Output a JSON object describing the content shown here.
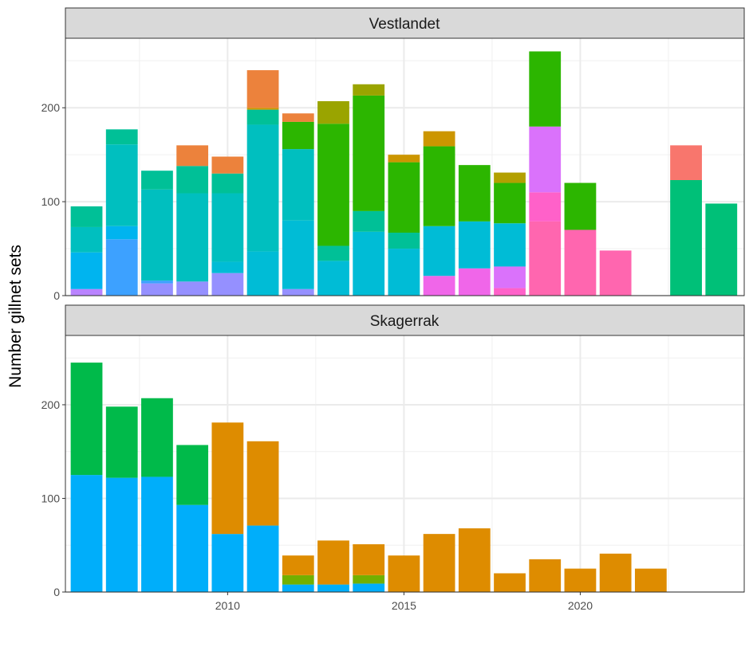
{
  "chart_data": {
    "type": "bar",
    "stacked": true,
    "ylabel": "Number gillnet sets",
    "xlabel": "",
    "x_ticks": [
      2010,
      2015,
      2020
    ],
    "y_ticks": [
      0,
      100,
      200
    ],
    "xlim": [
      2005.4,
      2024.65
    ],
    "ylim": [
      0,
      274
    ],
    "grid": true,
    "legend": "none",
    "facets": [
      {
        "title": "Vestlandet",
        "bars": [
          {
            "x": 2006,
            "segments": [
              {
                "value": 7,
                "color": "#B983FF"
              },
              {
                "value": 39,
                "color": "#00B4EF"
              },
              {
                "value": 27,
                "color": "#00BFBF"
              },
              {
                "value": 22,
                "color": "#00C097"
              }
            ]
          },
          {
            "x": 2007,
            "segments": [
              {
                "value": 60,
                "color": "#3DA1FF"
              },
              {
                "value": 14,
                "color": "#00B4EF"
              },
              {
                "value": 87,
                "color": "#00BFBF"
              },
              {
                "value": 16,
                "color": "#00C097"
              }
            ]
          },
          {
            "x": 2008,
            "segments": [
              {
                "value": 13,
                "color": "#9590FF"
              },
              {
                "value": 3,
                "color": "#3DA1FF"
              },
              {
                "value": 97,
                "color": "#00BFBF"
              },
              {
                "value": 20,
                "color": "#00C097"
              }
            ]
          },
          {
            "x": 2009,
            "segments": [
              {
                "value": 15,
                "color": "#9590FF"
              },
              {
                "value": 94,
                "color": "#00BFBF"
              },
              {
                "value": 29,
                "color": "#00C097"
              },
              {
                "value": 22,
                "color": "#EC823C"
              }
            ]
          },
          {
            "x": 2010,
            "segments": [
              {
                "value": 24,
                "color": "#9590FF"
              },
              {
                "value": 12,
                "color": "#00BCD6"
              },
              {
                "value": 73,
                "color": "#00BFBF"
              },
              {
                "value": 21,
                "color": "#00C097"
              },
              {
                "value": 18,
                "color": "#EC823C"
              }
            ]
          },
          {
            "x": 2011,
            "segments": [
              {
                "value": 47,
                "color": "#00BCD6"
              },
              {
                "value": 135,
                "color": "#00BFBF"
              },
              {
                "value": 16,
                "color": "#00C097"
              },
              {
                "value": 2,
                "color": "#CC9600"
              },
              {
                "value": 40,
                "color": "#EC823C"
              }
            ]
          },
          {
            "x": 2012,
            "segments": [
              {
                "value": 7,
                "color": "#9590FF"
              },
              {
                "value": 73,
                "color": "#00BCD6"
              },
              {
                "value": 76,
                "color": "#00BFBF"
              },
              {
                "value": 29,
                "color": "#2CB600"
              },
              {
                "value": 9,
                "color": "#EC823C"
              }
            ]
          },
          {
            "x": 2013,
            "segments": [
              {
                "value": 37,
                "color": "#00BCD6"
              },
              {
                "value": 16,
                "color": "#00C097"
              },
              {
                "value": 130,
                "color": "#2CB600"
              },
              {
                "value": 24,
                "color": "#9AA400"
              }
            ]
          },
          {
            "x": 2014,
            "segments": [
              {
                "value": 68,
                "color": "#00BCD6"
              },
              {
                "value": 22,
                "color": "#00C097"
              },
              {
                "value": 123,
                "color": "#2CB600"
              },
              {
                "value": 12,
                "color": "#9AA400"
              }
            ]
          },
          {
            "x": 2015,
            "segments": [
              {
                "value": 50,
                "color": "#00BCD6"
              },
              {
                "value": 17,
                "color": "#00C097"
              },
              {
                "value": 75,
                "color": "#2CB600"
              },
              {
                "value": 8,
                "color": "#CC9600"
              }
            ]
          },
          {
            "x": 2016,
            "segments": [
              {
                "value": 21,
                "color": "#F066E9"
              },
              {
                "value": 53,
                "color": "#00BCD6"
              },
              {
                "value": 85,
                "color": "#2CB600"
              },
              {
                "value": 16,
                "color": "#CC9600"
              }
            ]
          },
          {
            "x": 2017,
            "segments": [
              {
                "value": 29,
                "color": "#F066E9"
              },
              {
                "value": 50,
                "color": "#00BCD6"
              },
              {
                "value": 60,
                "color": "#2CB600"
              }
            ]
          },
          {
            "x": 2018,
            "segments": [
              {
                "value": 8,
                "color": "#FF61C9"
              },
              {
                "value": 23,
                "color": "#DA72FB"
              },
              {
                "value": 46,
                "color": "#00BCD6"
              },
              {
                "value": 43,
                "color": "#2CB600"
              },
              {
                "value": 11,
                "color": "#B3A000"
              }
            ]
          },
          {
            "x": 2019,
            "segments": [
              {
                "value": 79,
                "color": "#FF66AF"
              },
              {
                "value": 31,
                "color": "#FF61C9"
              },
              {
                "value": 70,
                "color": "#DA72FB"
              },
              {
                "value": 80,
                "color": "#2CB600"
              }
            ]
          },
          {
            "x": 2020,
            "segments": [
              {
                "value": 70,
                "color": "#FF66AF"
              },
              {
                "value": 50,
                "color": "#2CB600"
              }
            ]
          },
          {
            "x": 2021,
            "segments": [
              {
                "value": 48,
                "color": "#FF66AF"
              }
            ]
          },
          {
            "x": 2023,
            "segments": [
              {
                "value": 123,
                "color": "#00C078"
              },
              {
                "value": 37,
                "color": "#F8766D"
              }
            ]
          },
          {
            "x": 2024,
            "segments": [
              {
                "value": 98,
                "color": "#00C078"
              }
            ]
          }
        ]
      },
      {
        "title": "Skagerrak",
        "bars": [
          {
            "x": 2006,
            "segments": [
              {
                "value": 125,
                "color": "#00AEFA"
              },
              {
                "value": 120,
                "color": "#00BA4A"
              }
            ]
          },
          {
            "x": 2007,
            "segments": [
              {
                "value": 122,
                "color": "#00AEFA"
              },
              {
                "value": 76,
                "color": "#00BA4A"
              }
            ]
          },
          {
            "x": 2008,
            "segments": [
              {
                "value": 123,
                "color": "#00AEFA"
              },
              {
                "value": 84,
                "color": "#00BA4A"
              }
            ]
          },
          {
            "x": 2009,
            "segments": [
              {
                "value": 93,
                "color": "#00AEFA"
              },
              {
                "value": 64,
                "color": "#00BA4A"
              }
            ]
          },
          {
            "x": 2010,
            "segments": [
              {
                "value": 62,
                "color": "#00AEFA"
              },
              {
                "value": 119,
                "color": "#DE8C00"
              }
            ]
          },
          {
            "x": 2011,
            "segments": [
              {
                "value": 71,
                "color": "#00AEFA"
              },
              {
                "value": 90,
                "color": "#DE8C00"
              }
            ]
          },
          {
            "x": 2012,
            "segments": [
              {
                "value": 8,
                "color": "#00AEFA"
              },
              {
                "value": 10,
                "color": "#72B000"
              },
              {
                "value": 21,
                "color": "#DE8C00"
              }
            ]
          },
          {
            "x": 2013,
            "segments": [
              {
                "value": 8,
                "color": "#00AEFA"
              },
              {
                "value": 47,
                "color": "#DE8C00"
              }
            ]
          },
          {
            "x": 2014,
            "segments": [
              {
                "value": 9,
                "color": "#00AEFA"
              },
              {
                "value": 9,
                "color": "#72B000"
              },
              {
                "value": 33,
                "color": "#DE8C00"
              }
            ]
          },
          {
            "x": 2015,
            "segments": [
              {
                "value": 39,
                "color": "#DE8C00"
              }
            ]
          },
          {
            "x": 2016,
            "segments": [
              {
                "value": 62,
                "color": "#DE8C00"
              }
            ]
          },
          {
            "x": 2017,
            "segments": [
              {
                "value": 68,
                "color": "#DE8C00"
              }
            ]
          },
          {
            "x": 2018,
            "segments": [
              {
                "value": 20,
                "color": "#DE8C00"
              }
            ]
          },
          {
            "x": 2019,
            "segments": [
              {
                "value": 35,
                "color": "#DE8C00"
              }
            ]
          },
          {
            "x": 2020,
            "segments": [
              {
                "value": 25,
                "color": "#DE8C00"
              }
            ]
          },
          {
            "x": 2021,
            "segments": [
              {
                "value": 41,
                "color": "#DE8C00"
              }
            ]
          },
          {
            "x": 2022,
            "segments": [
              {
                "value": 25,
                "color": "#DE8C00"
              }
            ]
          }
        ]
      }
    ]
  }
}
